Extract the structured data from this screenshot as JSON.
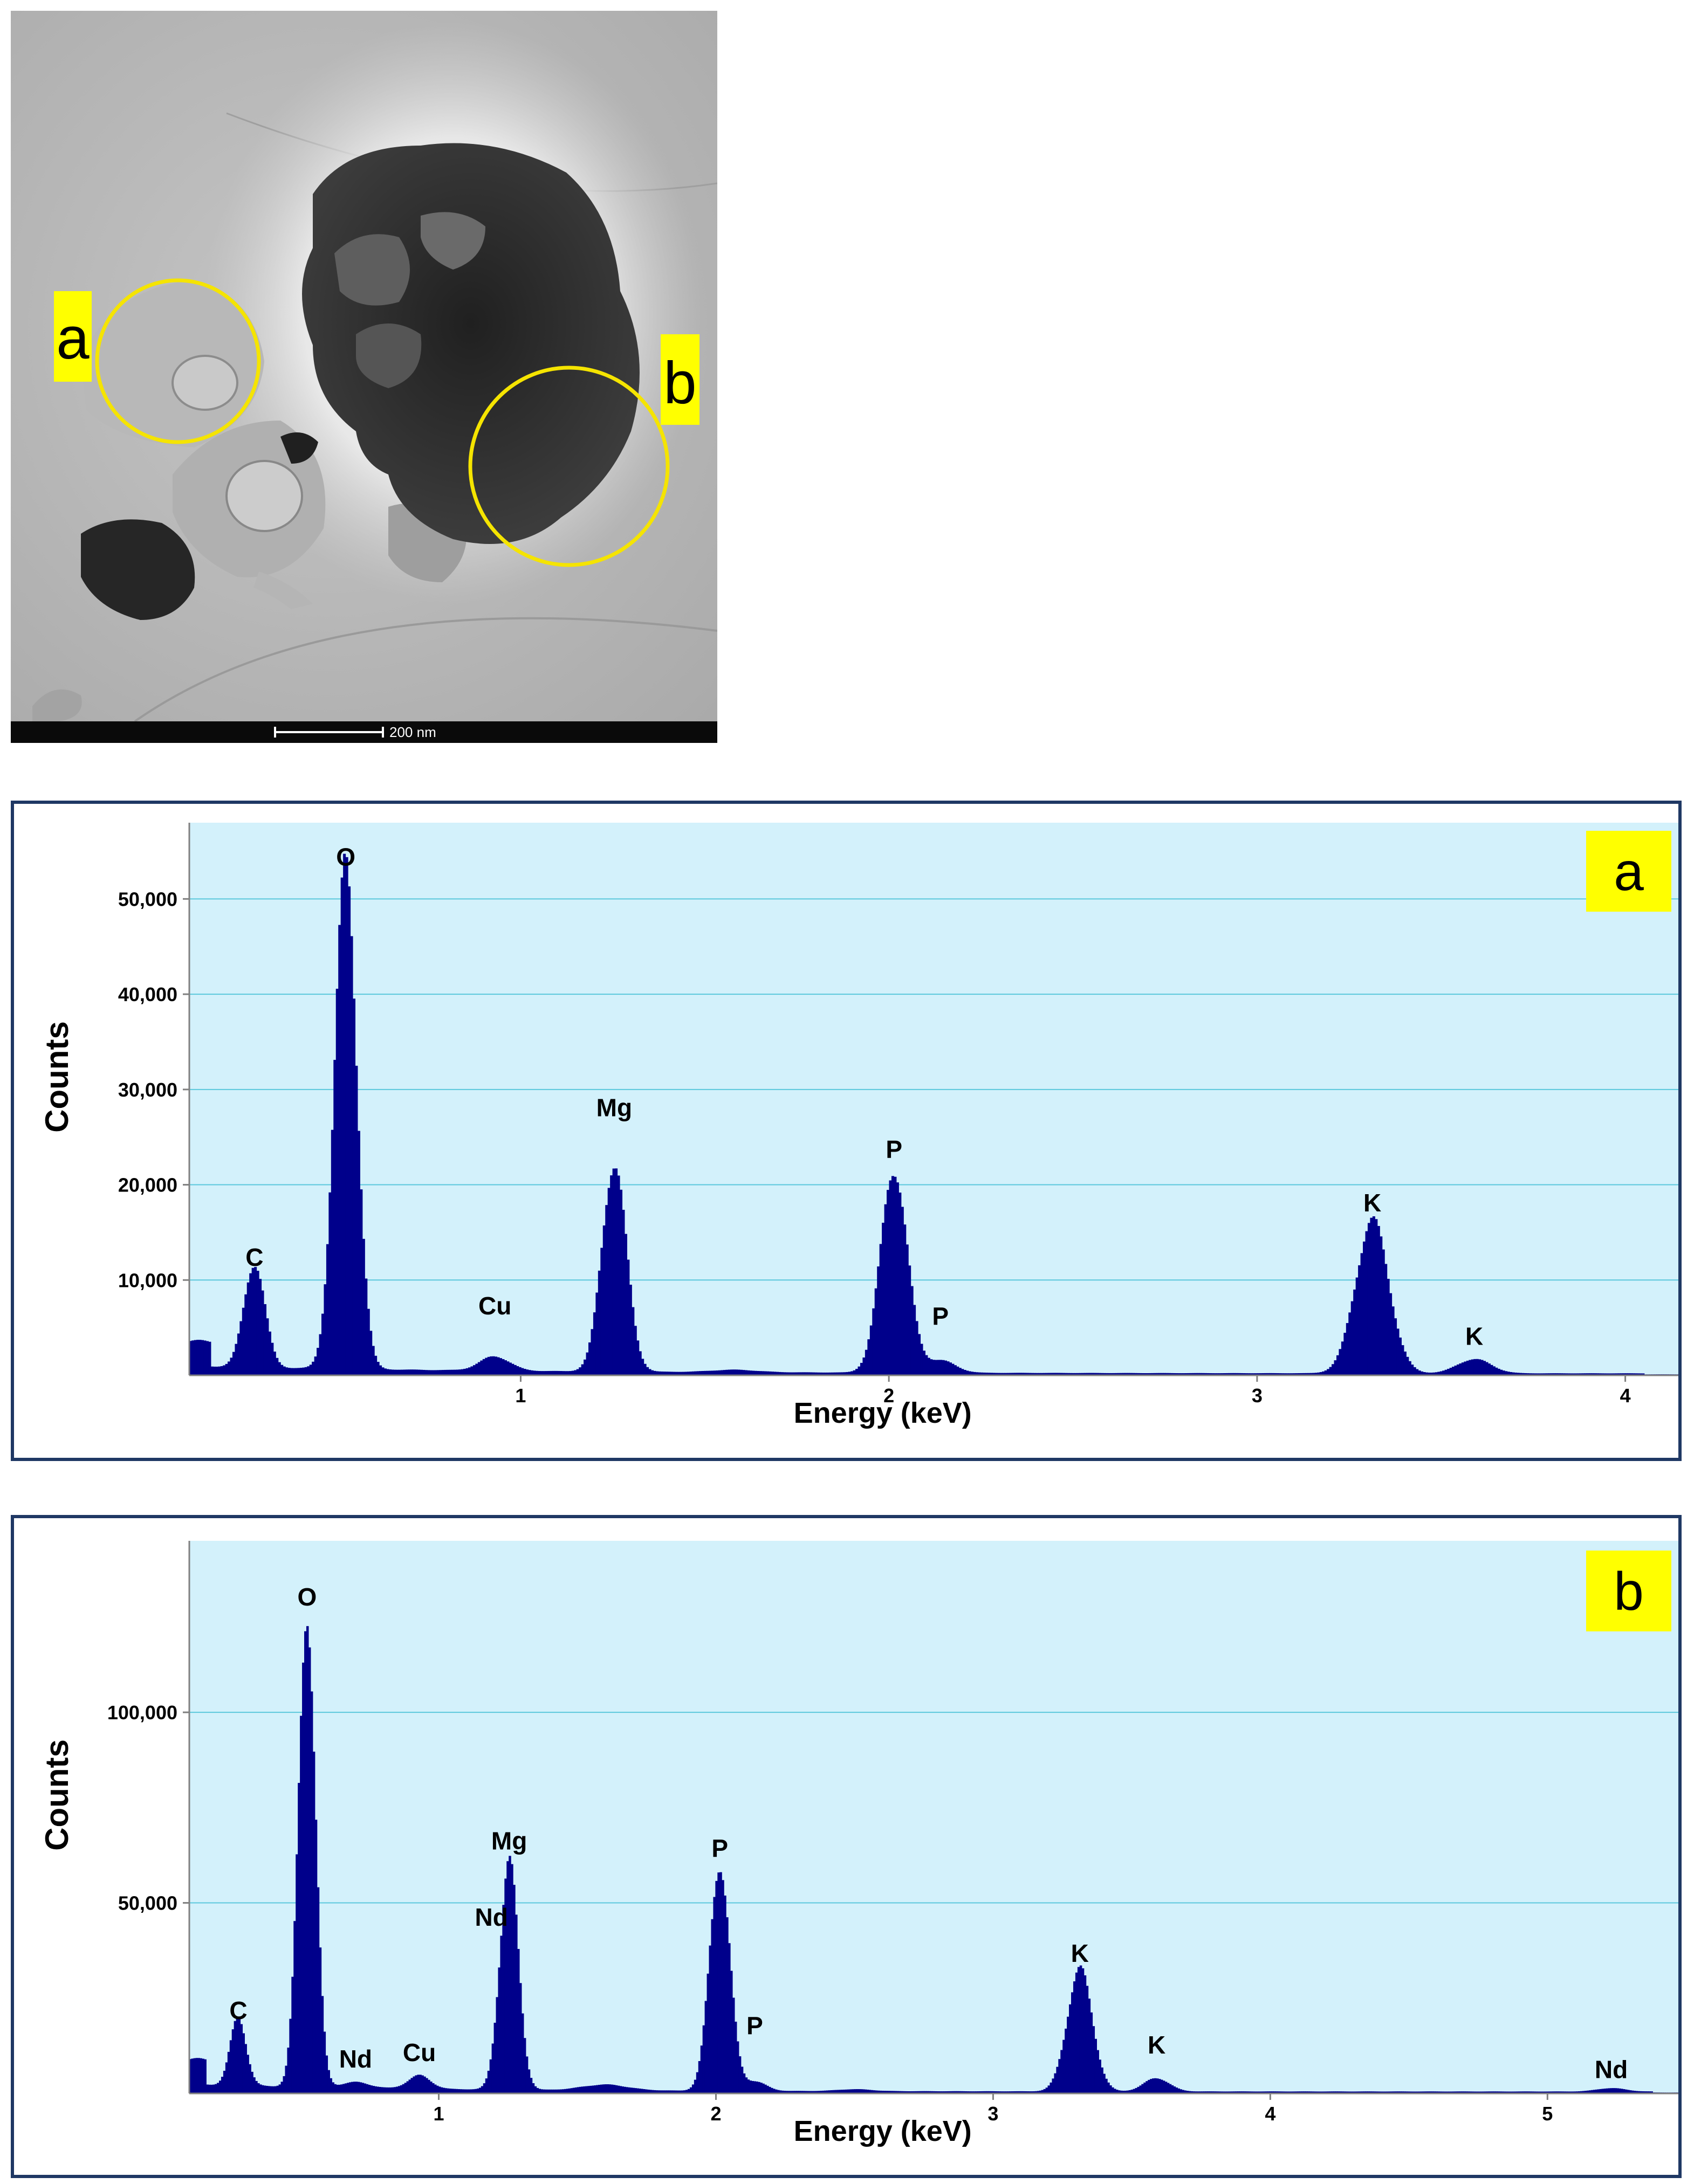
{
  "tem_image": {
    "scale_bar_label": "200 nm",
    "regions": [
      {
        "label": "a"
      },
      {
        "label": "b"
      }
    ],
    "colors": {
      "marker": "#f5e400",
      "label_bg": "#ffff00",
      "label_text": "#000000"
    }
  },
  "chart_data": [
    {
      "type": "bar",
      "panel_label": "a",
      "xlabel": "Energy (keV)",
      "ylabel": "Counts",
      "xlim": [
        0.1,
        4.15
      ],
      "ylim": [
        0,
        58000
      ],
      "x_ticks": [
        1,
        2,
        3,
        4
      ],
      "y_ticks": [
        10000,
        20000,
        30000,
        40000,
        50000
      ],
      "y_tick_labels": [
        "10,000",
        "20,000",
        "30,000",
        "40,000",
        "50,000"
      ],
      "grid": true,
      "bar_color": "#00008b",
      "background_color": "#d3f1fb",
      "baseline": 800,
      "peaks": [
        {
          "energy": 0.277,
          "counts": 11000,
          "width": 0.028
        },
        {
          "energy": 0.525,
          "counts": 52500,
          "width": 0.03
        },
        {
          "energy": 0.93,
          "counts": 1500,
          "width": 0.04
        },
        {
          "energy": 1.254,
          "counts": 22000,
          "width": 0.033
        },
        {
          "energy": 1.58,
          "counts": 250,
          "width": 0.06
        },
        {
          "energy": 2.014,
          "counts": 21500,
          "width": 0.036
        },
        {
          "energy": 2.14,
          "counts": 1300,
          "width": 0.04
        },
        {
          "energy": 3.313,
          "counts": 16000,
          "width": 0.045
        },
        {
          "energy": 3.59,
          "counts": 1500,
          "width": 0.045
        }
      ],
      "annotations": [
        {
          "text": "C",
          "x": 0.277,
          "y": 11500
        },
        {
          "text": "O",
          "x": 0.525,
          "y": 53500
        },
        {
          "text": "Cu",
          "x": 0.93,
          "y": 6400
        },
        {
          "text": "Mg",
          "x": 1.254,
          "y": 27200
        },
        {
          "text": "P",
          "x": 2.014,
          "y": 22800
        },
        {
          "text": "P",
          "x": 2.14,
          "y": 5300
        },
        {
          "text": "K",
          "x": 3.313,
          "y": 17200
        },
        {
          "text": "K",
          "x": 3.59,
          "y": 3200
        }
      ]
    },
    {
      "type": "bar",
      "panel_label": "b",
      "xlabel": "Energy (keV)",
      "ylabel": "Counts",
      "xlim": [
        0.1,
        5.48
      ],
      "ylim": [
        0,
        145000
      ],
      "x_ticks": [
        1,
        2,
        3,
        4,
        5
      ],
      "y_ticks": [
        50000,
        100000
      ],
      "y_tick_labels": [
        "50,000",
        "100,000"
      ],
      "grid": true,
      "bar_color": "#00008b",
      "background_color": "#d3f1fb",
      "baseline": 2000,
      "peaks": [
        {
          "energy": 0.277,
          "counts": 18000,
          "width": 0.028
        },
        {
          "energy": 0.525,
          "counts": 126000,
          "width": 0.03
        },
        {
          "energy": 0.7,
          "counts": 1500,
          "width": 0.05
        },
        {
          "energy": 0.93,
          "counts": 3500,
          "width": 0.04
        },
        {
          "energy": 1.254,
          "counts": 60000,
          "width": 0.033
        },
        {
          "energy": 1.6,
          "counts": 1500,
          "width": 0.08
        },
        {
          "energy": 2.014,
          "counts": 60000,
          "width": 0.036
        },
        {
          "energy": 2.14,
          "counts": 2500,
          "width": 0.04
        },
        {
          "energy": 2.5,
          "counts": 500,
          "width": 0.06
        },
        {
          "energy": 3.313,
          "counts": 32000,
          "width": 0.045
        },
        {
          "energy": 3.59,
          "counts": 3500,
          "width": 0.045
        },
        {
          "energy": 5.23,
          "counts": 900,
          "width": 0.05
        }
      ],
      "annotations": [
        {
          "text": "C",
          "x": 0.277,
          "y": 19500
        },
        {
          "text": "O",
          "x": 0.525,
          "y": 128000
        },
        {
          "text": "Nd",
          "x": 0.7,
          "y": 6800
        },
        {
          "text": "Cu",
          "x": 0.93,
          "y": 8500
        },
        {
          "text": "Nd",
          "x": 1.19,
          "y": 44000
        },
        {
          "text": "Mg",
          "x": 1.254,
          "y": 64000
        },
        {
          "text": "P",
          "x": 2.014,
          "y": 62000
        },
        {
          "text": "P",
          "x": 2.14,
          "y": 15500
        },
        {
          "text": "K",
          "x": 3.313,
          "y": 34500
        },
        {
          "text": "K",
          "x": 3.59,
          "y": 10500
        },
        {
          "text": "Nd",
          "x": 5.23,
          "y": 4000
        }
      ]
    }
  ]
}
